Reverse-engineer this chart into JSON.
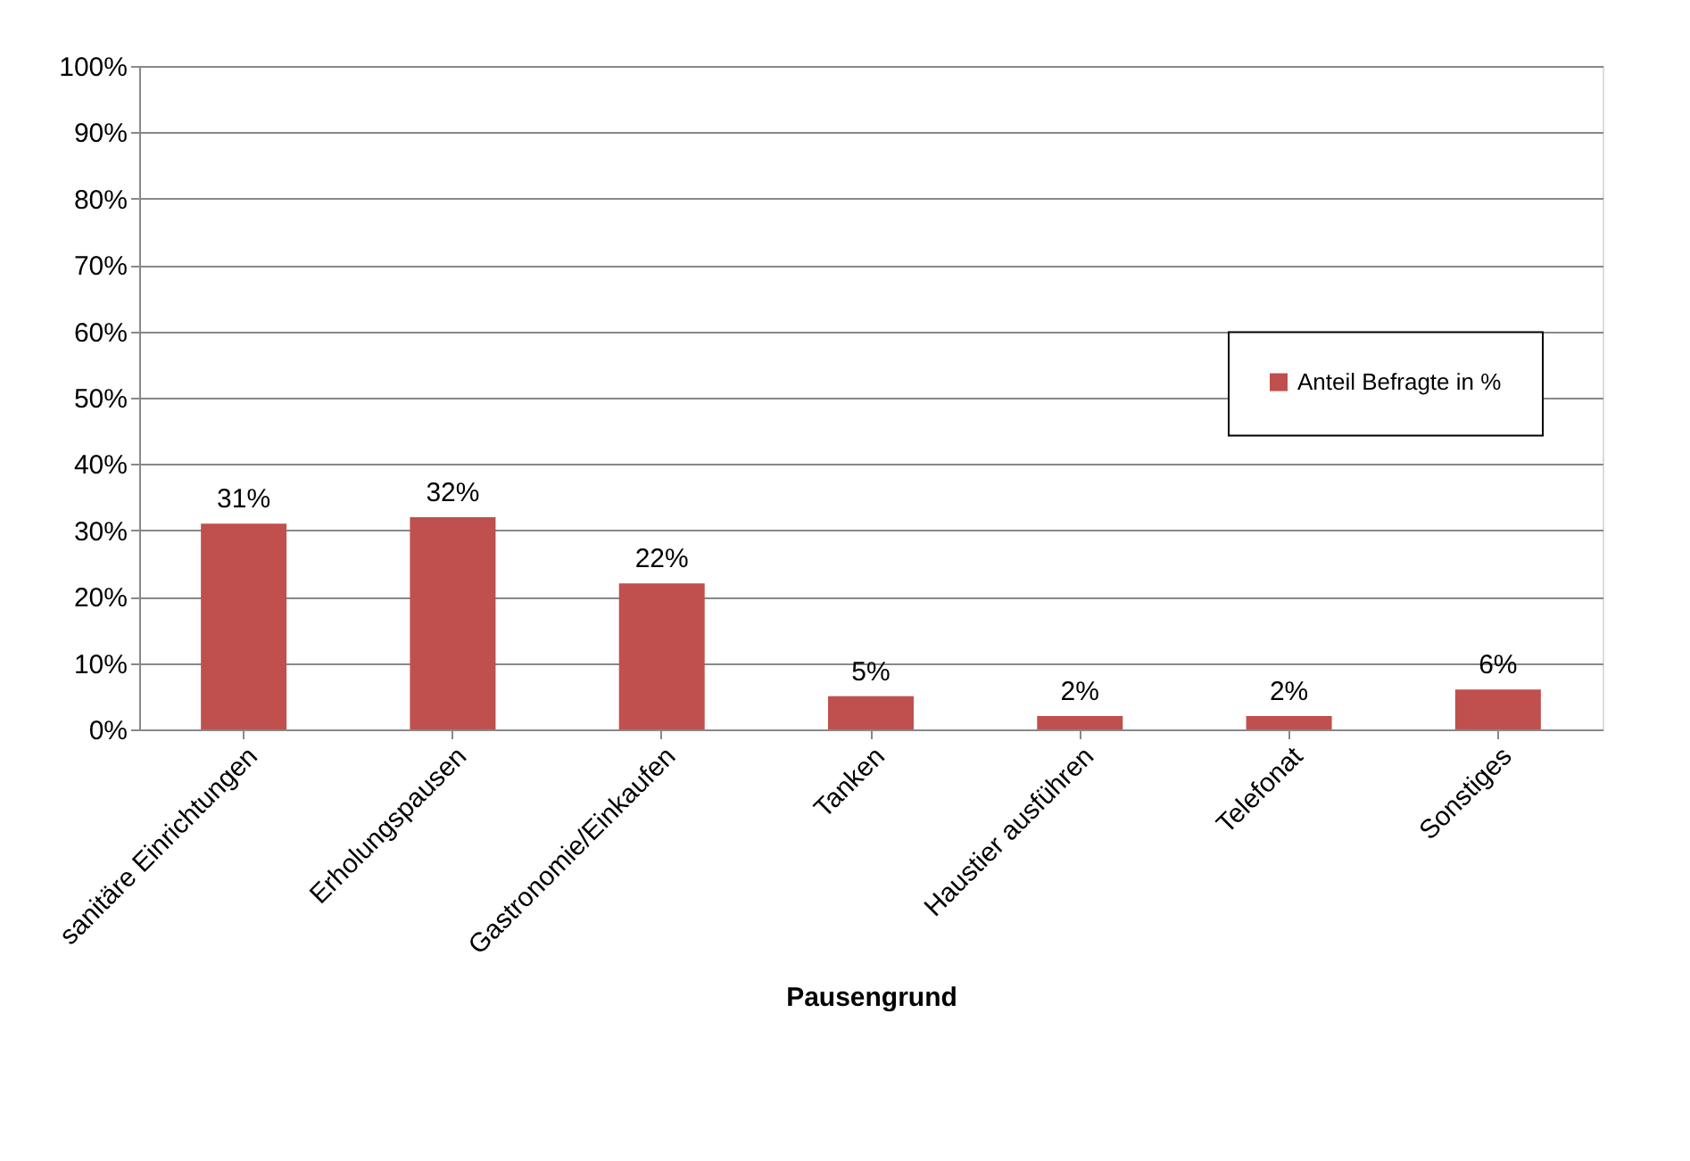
{
  "chart_data": {
    "type": "bar",
    "xlabel": "Pausengrund",
    "categories": [
      "sanitäre Einrichtungen",
      "Erholungspausen",
      "Gastronomie/Einkaufen",
      "Tanken",
      "Haustier ausführen",
      "Telefonat",
      "Sonstiges"
    ],
    "series": [
      {
        "name": "Anteil Befragte in %",
        "color": "#c0504d",
        "values": [
          31,
          32,
          22,
          5,
          2,
          2,
          6
        ],
        "value_labels": [
          "31%",
          "32%",
          "22%",
          "5%",
          "2%",
          "2%",
          "6%"
        ]
      }
    ],
    "ylim": [
      0,
      100
    ],
    "yticks": [
      {
        "value": 0,
        "label": "0%"
      },
      {
        "value": 10,
        "label": "10%"
      },
      {
        "value": 20,
        "label": "20%"
      },
      {
        "value": 30,
        "label": "30%"
      },
      {
        "value": 40,
        "label": "40%"
      },
      {
        "value": 50,
        "label": "50%"
      },
      {
        "value": 60,
        "label": "60%"
      },
      {
        "value": 70,
        "label": "70%"
      },
      {
        "value": 80,
        "label": "80%"
      },
      {
        "value": 90,
        "label": "90%"
      },
      {
        "value": 100,
        "label": "100%"
      }
    ],
    "grid": "y",
    "legend": "right"
  }
}
